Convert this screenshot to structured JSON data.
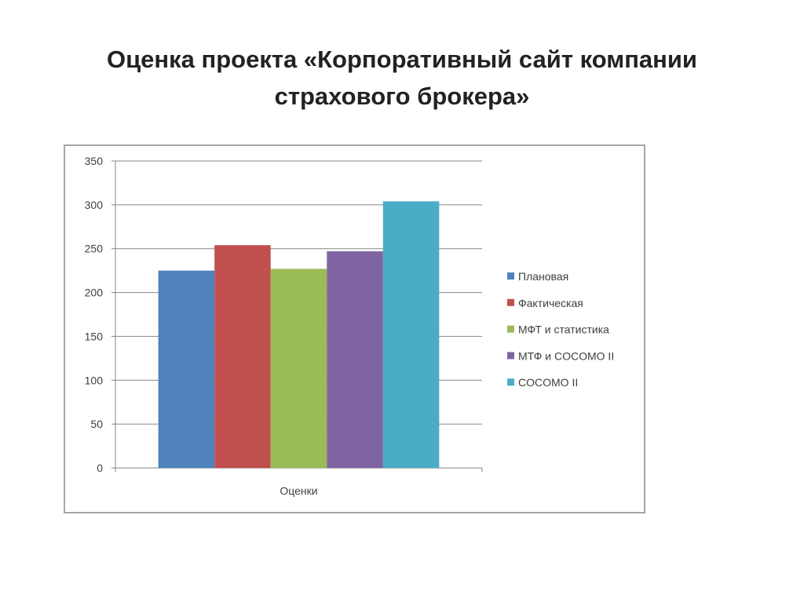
{
  "slide": {
    "title_line1": "Оценка проекта «Корпоративный сайт компании",
    "title_line2": "страхового брокера»"
  },
  "chart_data": {
    "type": "bar",
    "title": "",
    "xlabel": "",
    "ylabel": "",
    "categories": [
      "Оценки"
    ],
    "series": [
      {
        "name": "Плановая",
        "values": [
          225
        ],
        "color": "#4f81bd"
      },
      {
        "name": "Фактическая",
        "values": [
          254
        ],
        "color": "#c0504d"
      },
      {
        "name": "МФТ и статистика",
        "values": [
          227
        ],
        "color": "#9bbb59"
      },
      {
        "name": "МТФ и COCOMO II",
        "values": [
          247
        ],
        "color": "#8064a2"
      },
      {
        "name": "COCOMO II",
        "values": [
          304
        ],
        "color": "#4bacc6"
      }
    ],
    "ylim": [
      0,
      350
    ],
    "yticks": [
      0,
      50,
      100,
      150,
      200,
      250,
      300,
      350
    ],
    "grid": true,
    "legend": "right"
  }
}
